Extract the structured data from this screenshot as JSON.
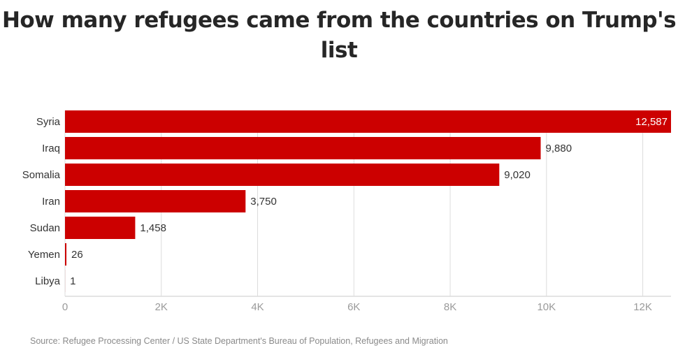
{
  "chart_data": {
    "type": "bar",
    "orientation": "horizontal",
    "title": "How many refugees came from the countries on Trump's list",
    "categories": [
      "Syria",
      "Iraq",
      "Somalia",
      "Iran",
      "Sudan",
      "Yemen",
      "Libya"
    ],
    "values": [
      12587,
      9880,
      9020,
      3750,
      1458,
      26,
      1
    ],
    "value_labels": [
      "12,587",
      "9,880",
      "9,020",
      "3,750",
      "1,458",
      "26",
      "1"
    ],
    "xlim": [
      0,
      12587
    ],
    "x_ticks": [
      0,
      2000,
      4000,
      6000,
      8000,
      10000,
      12000
    ],
    "x_tick_labels": [
      "0",
      "2K",
      "4K",
      "6K",
      "8K",
      "10K",
      "12K"
    ],
    "grid": "vertical",
    "bar_color": "#cc0000",
    "source": "Source: Refugee Processing Center / US State Department's Bureau of Population, Refugees and Migration"
  }
}
